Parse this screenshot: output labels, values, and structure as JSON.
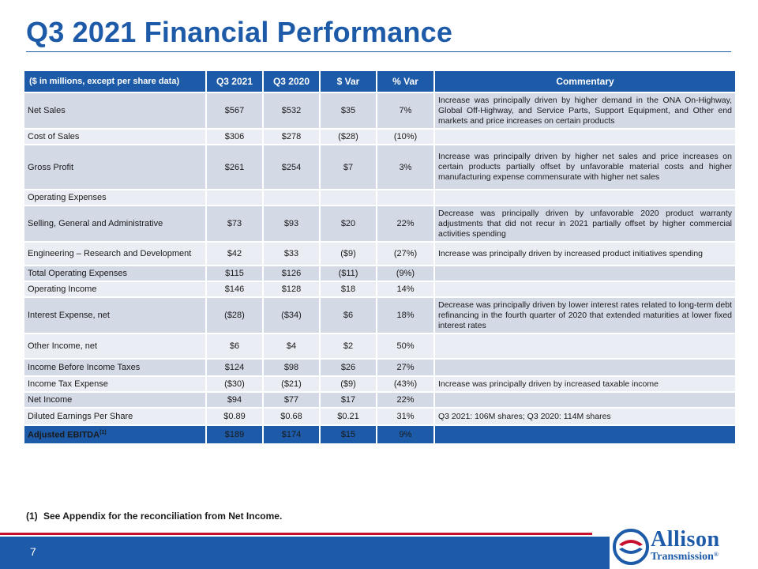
{
  "title": "Q3 2021 Financial Performance",
  "table": {
    "headers": [
      "($ in millions, except per share data)",
      "Q3 2021",
      "Q3 2020",
      "$ Var",
      "% Var",
      "Commentary"
    ],
    "rows": [
      {
        "label": "Net Sales",
        "q3_2021": "$567",
        "q3_2020": "$532",
        "dvar": "$35",
        "pvar": "7%",
        "commentary": "Increase was principally driven by higher demand in the ONA On-Highway, Global Off-Highway, and Service Parts, Support Equipment, and Other end markets and price increases on certain products"
      },
      {
        "label": "Cost of Sales",
        "q3_2021": "$306",
        "q3_2020": "$278",
        "dvar": "($28)",
        "pvar": "(10%)",
        "commentary": ""
      },
      {
        "label": "Gross Profit",
        "q3_2021": "$261",
        "q3_2020": "$254",
        "dvar": "$7",
        "pvar": "3%",
        "commentary": "Increase was principally driven by higher net sales and price increases on certain products partially offset by unfavorable material costs and higher manufacturing expense commensurate with higher net sales"
      },
      {
        "label": "Operating Expenses",
        "q3_2021": "",
        "q3_2020": "",
        "dvar": "",
        "pvar": "",
        "commentary": ""
      },
      {
        "label": "Selling, General and Administrative",
        "q3_2021": "$73",
        "q3_2020": "$93",
        "dvar": "$20",
        "pvar": "22%",
        "commentary": "Decrease was principally driven by unfavorable 2020 product warranty adjustments that did not recur in 2021 partially offset by higher commercial activities spending"
      },
      {
        "label": "Engineering – Research and Development",
        "q3_2021": "$42",
        "q3_2020": "$33",
        "dvar": "($9)",
        "pvar": "(27%)",
        "commentary": "Increase was principally driven by increased product initiatives spending"
      },
      {
        "label": "Total Operating Expenses",
        "q3_2021": "$115",
        "q3_2020": "$126",
        "dvar": "($11)",
        "pvar": "(9%)",
        "commentary": ""
      },
      {
        "label": "Operating Income",
        "q3_2021": "$146",
        "q3_2020": "$128",
        "dvar": "$18",
        "pvar": "14%",
        "commentary": ""
      },
      {
        "label": "Interest Expense, net",
        "q3_2021": "($28)",
        "q3_2020": "($34)",
        "dvar": "$6",
        "pvar": "18%",
        "commentary": "Decrease was principally driven by lower interest rates related to long-term debt refinancing in the fourth quarter of 2020 that extended maturities at lower fixed interest rates"
      },
      {
        "label": "Other Income, net",
        "q3_2021": "$6",
        "q3_2020": "$4",
        "dvar": "$2",
        "pvar": "50%",
        "commentary": ""
      },
      {
        "label": "Income Before Income Taxes",
        "q3_2021": "$124",
        "q3_2020": "$98",
        "dvar": "$26",
        "pvar": "27%",
        "commentary": ""
      },
      {
        "label": "Income Tax Expense",
        "q3_2021": "($30)",
        "q3_2020": "($21)",
        "dvar": "($9)",
        "pvar": "(43%)",
        "commentary": "Increase was principally driven by increased taxable income"
      },
      {
        "label": "Net Income",
        "q3_2021": "$94",
        "q3_2020": "$77",
        "dvar": "$17",
        "pvar": "22%",
        "commentary": ""
      },
      {
        "label": "Diluted Earnings Per Share",
        "q3_2021": "$0.89",
        "q3_2020": "$0.68",
        "dvar": "$0.21",
        "pvar": "31%",
        "commentary": "Q3 2021: 106M shares;  Q3 2020: 114M shares"
      },
      {
        "label": "Adjusted EBITDA",
        "label_sup": "(1)",
        "q3_2021": "$189",
        "q3_2020": "$174",
        "dvar": "$15",
        "pvar": "9%",
        "commentary": ""
      }
    ]
  },
  "footnote": {
    "marker": "(1)",
    "text": "See Appendix for the reconciliation from Net Income."
  },
  "page_number": "7",
  "logo": {
    "line1": "Allison",
    "line2": "Transmission",
    "mark": "®"
  },
  "colors": {
    "brand_blue": "#1d5aa8",
    "row_shade": "#d4d9e6",
    "row_light": "#eaedf3",
    "accent_red": "#c8102e"
  }
}
